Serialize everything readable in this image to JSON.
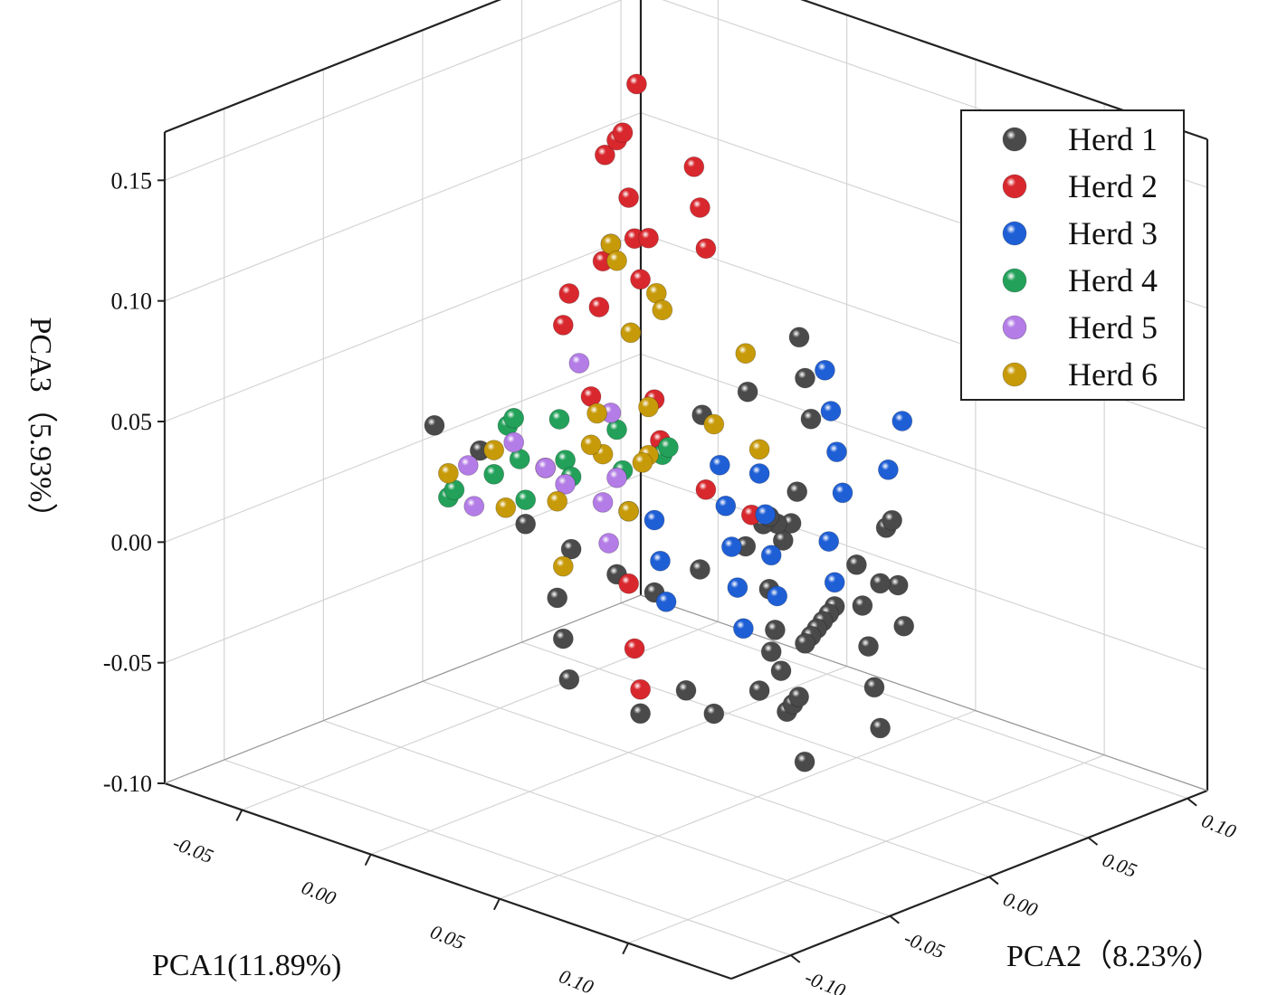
{
  "chart_data": {
    "type": "scatter",
    "subtype": "3d-scatter",
    "title": "",
    "xlabel": "PCA1(11.89%)",
    "ylabel": "PCA2（8.23%）",
    "zlabel": "PCA3（5.93%）",
    "xlim": [
      -0.08,
      0.14
    ],
    "ylim": [
      -0.13,
      0.11
    ],
    "zlim": [
      -0.1,
      0.17
    ],
    "x_ticks": [
      "-0.05",
      "0.00",
      "0.05",
      "0.10"
    ],
    "y_ticks": [
      "-0.10",
      "-0.05",
      "0.00",
      "0.05",
      "0.10"
    ],
    "z_ticks": [
      "0.15",
      "0.10",
      "0.05",
      "0.00",
      "-0.05",
      "-0.10"
    ],
    "grid": true,
    "legend_position": "top-right",
    "colors": {
      "Herd 1": "#4a4a4a",
      "Herd 2": "#d8282e",
      "Herd 3": "#1f5fd6",
      "Herd 4": "#23a15a",
      "Herd 5": "#b37ce6",
      "Herd 6": "#c79a0a"
    },
    "series": [
      {
        "name": "Herd 1",
        "points": [
          [
            0.02,
            0.06,
            0.06
          ],
          [
            0.03,
            0.05,
            0.05
          ],
          [
            0.04,
            0.04,
            0.04
          ],
          [
            0.05,
            0.02,
            0.02
          ],
          [
            0.06,
            0.0,
            0.01
          ],
          [
            0.07,
            -0.02,
            0.0
          ],
          [
            0.08,
            -0.03,
            -0.01
          ],
          [
            0.09,
            -0.04,
            -0.02
          ],
          [
            0.1,
            -0.05,
            -0.03
          ],
          [
            0.11,
            -0.06,
            -0.02
          ],
          [
            0.12,
            -0.07,
            -0.01
          ],
          [
            0.13,
            -0.08,
            -0.03
          ],
          [
            0.05,
            0.05,
            -0.02
          ],
          [
            0.06,
            0.04,
            -0.03
          ],
          [
            0.07,
            0.03,
            -0.04
          ],
          [
            0.08,
            0.02,
            -0.05
          ],
          [
            0.09,
            0.01,
            -0.06
          ],
          [
            0.04,
            0.02,
            -0.05
          ],
          [
            0.03,
            -0.01,
            -0.06
          ],
          [
            0.02,
            -0.02,
            -0.07
          ],
          [
            0.0,
            -0.03,
            -0.06
          ],
          [
            -0.01,
            -0.02,
            -0.05
          ],
          [
            -0.02,
            -0.01,
            -0.04
          ],
          [
            0.01,
            0.0,
            -0.03
          ],
          [
            0.02,
            0.01,
            -0.02
          ],
          [
            0.03,
            0.02,
            -0.01
          ],
          [
            0.04,
            0.03,
            0.0
          ],
          [
            0.05,
            0.01,
            0.01
          ],
          [
            0.06,
            -0.01,
            0.02
          ],
          [
            0.07,
            -0.02,
            0.03
          ],
          [
            -0.06,
            -0.02,
            0.02
          ],
          [
            -0.05,
            -0.01,
            0.01
          ],
          [
            -0.04,
            0.0,
            -0.02
          ],
          [
            -0.03,
            0.01,
            -0.03
          ],
          [
            -0.02,
            0.02,
            -0.04
          ],
          [
            0.1,
            0.0,
            0.03
          ],
          [
            0.11,
            -0.01,
            0.04
          ],
          [
            0.12,
            -0.02,
            0.02
          ],
          [
            0.13,
            -0.03,
            0.01
          ],
          [
            0.09,
            0.01,
            0.0
          ],
          [
            0.08,
            0.0,
            -0.01
          ],
          [
            0.07,
            0.01,
            -0.02
          ],
          [
            0.06,
            0.02,
            -0.03
          ],
          [
            0.05,
            0.03,
            -0.04
          ],
          [
            0.04,
            0.04,
            -0.05
          ],
          [
            0.03,
            0.05,
            -0.06
          ],
          [
            0.02,
            0.04,
            -0.08
          ],
          [
            0.01,
            0.03,
            -0.09
          ],
          [
            0.0,
            0.06,
            0.03
          ],
          [
            -0.01,
            0.05,
            0.02
          ]
        ]
      },
      {
        "name": "Herd 2",
        "points": [
          [
            -0.05,
            0.05,
            0.05
          ],
          [
            -0.04,
            0.04,
            0.12
          ],
          [
            -0.03,
            0.03,
            0.09
          ],
          [
            -0.02,
            0.02,
            0.14
          ],
          [
            -0.01,
            0.01,
            0.15
          ],
          [
            0.0,
            0.0,
            0.13
          ],
          [
            0.01,
            -0.01,
            0.12
          ],
          [
            0.02,
            -0.02,
            0.11
          ],
          [
            0.0,
            -0.03,
            0.1
          ],
          [
            -0.01,
            -0.02,
            0.08
          ],
          [
            0.01,
            0.02,
            0.14
          ],
          [
            0.02,
            0.01,
            0.13
          ],
          [
            0.03,
            0.0,
            0.12
          ],
          [
            0.0,
            0.01,
            0.11
          ],
          [
            -0.01,
            0.0,
            0.1
          ],
          [
            0.01,
            0.0,
            0.05
          ],
          [
            0.02,
            -0.01,
            0.04
          ],
          [
            -0.03,
            0.02,
            0.03
          ],
          [
            -0.04,
            0.01,
            0.0
          ],
          [
            0.0,
            0.0,
            -0.03
          ],
          [
            0.01,
            -0.01,
            -0.05
          ],
          [
            0.02,
            -0.02,
            -0.06
          ],
          [
            0.03,
            0.0,
            0.02
          ],
          [
            0.04,
            0.01,
            0.01
          ],
          [
            -0.02,
            0.03,
            0.16
          ]
        ]
      },
      {
        "name": "Herd 3",
        "points": [
          [
            0.03,
            0.06,
            0.05
          ],
          [
            0.04,
            0.05,
            0.04
          ],
          [
            0.05,
            0.04,
            0.03
          ],
          [
            0.06,
            0.03,
            0.02
          ],
          [
            0.07,
            0.04,
            0.03
          ],
          [
            0.02,
            0.02,
            0.02
          ],
          [
            0.03,
            0.01,
            0.01
          ],
          [
            0.04,
            0.0,
            0.0
          ],
          [
            0.05,
            -0.01,
            -0.01
          ],
          [
            0.06,
            -0.02,
            -0.02
          ],
          [
            0.02,
            0.04,
            0.01
          ],
          [
            0.03,
            0.03,
            0.0
          ],
          [
            0.04,
            0.02,
            -0.01
          ],
          [
            0.05,
            0.01,
            -0.02
          ],
          [
            0.01,
            0.0,
            0.0
          ],
          [
            0.02,
            -0.01,
            -0.01
          ],
          [
            0.03,
            -0.02,
            -0.02
          ],
          [
            0.07,
            0.01,
            0.01
          ],
          [
            0.08,
            0.0,
            0.0
          ],
          [
            0.06,
            0.06,
            0.04
          ]
        ]
      },
      {
        "name": "Herd 4",
        "points": [
          [
            -0.07,
            0.03,
            0.0
          ],
          [
            -0.06,
            0.02,
            0.01
          ],
          [
            -0.05,
            0.01,
            0.0
          ],
          [
            -0.04,
            0.0,
            -0.01
          ],
          [
            -0.06,
            0.01,
            -0.01
          ],
          [
            -0.05,
            0.03,
            0.01
          ],
          [
            -0.07,
            0.0,
            -0.02
          ],
          [
            -0.04,
            0.02,
            0.0
          ],
          [
            -0.01,
            0.01,
            0.01
          ],
          [
            0.0,
            0.0,
            0.0
          ],
          [
            -0.02,
            0.02,
            0.02
          ],
          [
            -0.01,
            0.03,
            0.01
          ],
          [
            0.0,
            0.02,
            0.02
          ],
          [
            -0.03,
            0.01,
            0.0
          ],
          [
            -0.06,
            -0.01,
            -0.01
          ]
        ]
      },
      {
        "name": "Herd 5",
        "points": [
          [
            -0.07,
            0.01,
            -0.01
          ],
          [
            -0.06,
            0.0,
            -0.02
          ],
          [
            -0.04,
            0.01,
            0.0
          ],
          [
            -0.03,
            0.03,
            0.02
          ],
          [
            -0.04,
            0.02,
            -0.01
          ],
          [
            -0.02,
            0.02,
            0.0
          ],
          [
            -0.01,
            0.0,
            0.0
          ],
          [
            0.0,
            -0.01,
            -0.01
          ],
          [
            -0.05,
            0.04,
            0.03
          ],
          [
            -0.06,
            0.02,
            0.0
          ]
        ]
      },
      {
        "name": "Herd 6",
        "points": [
          [
            -0.03,
            0.03,
            0.09
          ],
          [
            -0.02,
            0.02,
            0.09
          ],
          [
            -0.02,
            0.04,
            0.07
          ],
          [
            -0.01,
            0.03,
            0.07
          ],
          [
            0.03,
            0.02,
            0.07
          ],
          [
            -0.02,
            0.01,
            0.03
          ],
          [
            -0.01,
            0.0,
            0.02
          ],
          [
            0.0,
            0.01,
            0.02
          ],
          [
            -0.03,
            0.02,
            0.01
          ],
          [
            -0.01,
            0.02,
            0.01
          ],
          [
            0.0,
            0.0,
            0.0
          ],
          [
            -0.02,
            -0.01,
            0.0
          ],
          [
            -0.07,
            0.0,
            -0.01
          ],
          [
            -0.06,
            0.01,
            0.0
          ],
          [
            -0.04,
            -0.01,
            -0.01
          ],
          [
            0.01,
            0.03,
            0.03
          ],
          [
            0.02,
            0.04,
            0.02
          ],
          [
            -0.01,
            -0.02,
            -0.02
          ],
          [
            0.0,
            0.01,
            0.04
          ],
          [
            -0.03,
            0.04,
            0.05
          ]
        ]
      }
    ]
  }
}
